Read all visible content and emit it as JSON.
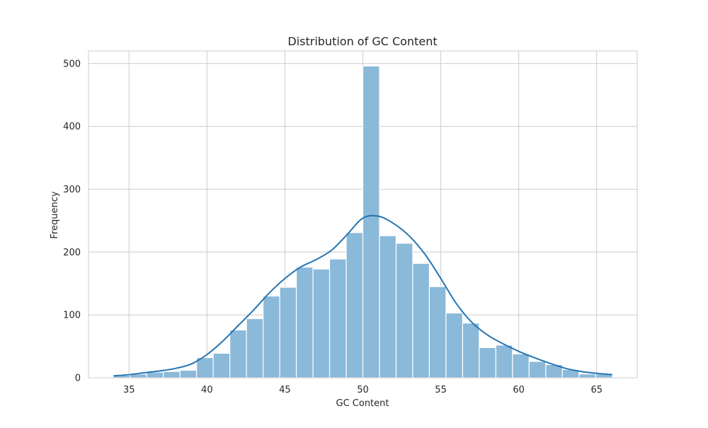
{
  "chart_data": {
    "type": "bar",
    "title": "Distribution of GC Content",
    "xlabel": "GC Content",
    "ylabel": "Frequency",
    "xlim": [
      32.4,
      67.6
    ],
    "ylim": [
      0,
      520
    ],
    "xticks": [
      35,
      40,
      45,
      50,
      55,
      60,
      65
    ],
    "yticks": [
      0,
      100,
      200,
      300,
      400,
      500
    ],
    "grid": true,
    "bin_start": 34,
    "bin_width": 1.0667,
    "values": [
      4,
      6,
      9,
      10,
      12,
      32,
      39,
      76,
      94,
      130,
      144,
      176,
      173,
      189,
      231,
      496,
      226,
      214,
      182,
      145,
      103,
      87,
      48,
      52,
      38,
      26,
      21,
      13,
      6,
      6
    ],
    "kde": {
      "x": [
        34,
        35,
        36,
        37,
        38,
        39,
        40,
        41,
        42,
        43,
        44,
        45,
        46,
        47,
        48,
        49,
        50,
        51,
        52,
        53,
        54,
        55,
        56,
        57,
        58,
        59,
        60,
        61,
        62,
        63,
        64,
        65,
        66
      ],
      "y": [
        3,
        5,
        8,
        11,
        15,
        22,
        37,
        58,
        83,
        108,
        135,
        158,
        176,
        188,
        203,
        228,
        254,
        257,
        245,
        225,
        196,
        158,
        118,
        88,
        68,
        54,
        42,
        32,
        23,
        15,
        10,
        7,
        5
      ]
    },
    "colors": {
      "bar_fill": "#8ab9d9",
      "bar_edge": "#ffffff",
      "kde_line": "#2474b2",
      "grid": "#cccccc",
      "axes_edge": "#cccccc",
      "text": "#262626"
    }
  }
}
